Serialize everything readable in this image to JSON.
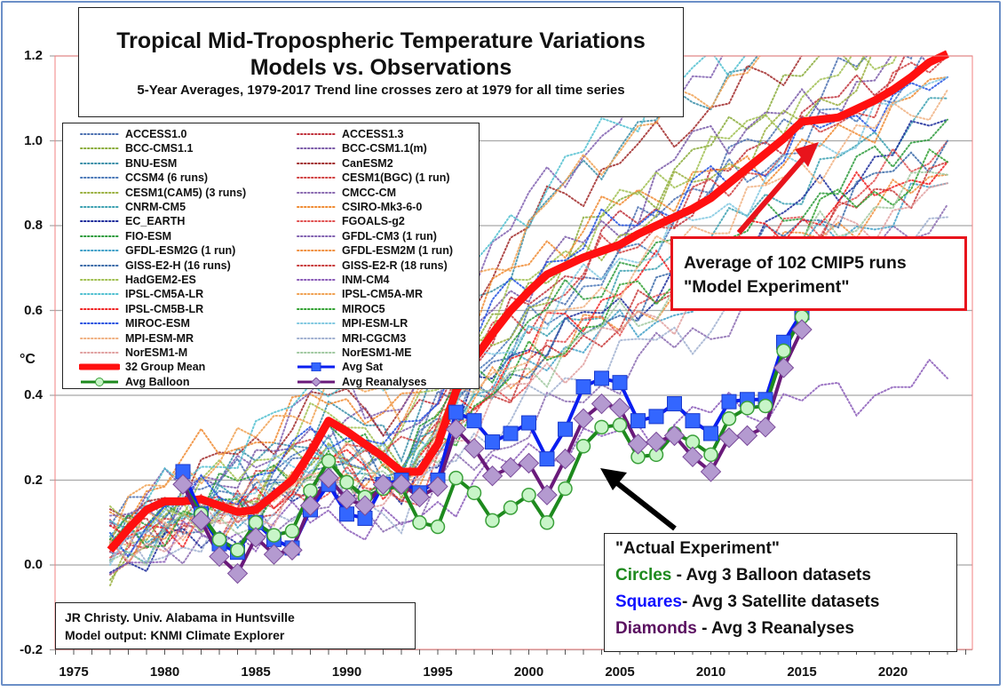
{
  "chart_data": {
    "type": "line",
    "title": "Tropical Mid-Tropospheric Temperature Variations",
    "subtitle": "Models vs. Observations",
    "subtitle2": "5-Year Averages, 1979-2017 Trend line crosses zero at 1979 for all time series",
    "xlabel": "",
    "ylabel": "°C",
    "xlim": [
      1975,
      2024.5
    ],
    "ylim": [
      -0.2,
      1.2
    ],
    "grid": "horizontal",
    "x_ticks": [
      "1975",
      "1980",
      "1985",
      "1990",
      "1995",
      "2000",
      "2005",
      "2010",
      "2015",
      "2020"
    ],
    "y_ticks": [
      "1.2",
      "1.0",
      "0.8",
      "0.6",
      "0.4",
      "0.2",
      "0.0",
      "-0.2"
    ],
    "legend_placement": "top-left",
    "observations_x": [
      1981,
      1982,
      1983,
      1984,
      1985,
      1986,
      1987,
      1988,
      1989,
      1990,
      1991,
      1992,
      1993,
      1994,
      1995,
      1996,
      1997,
      1998,
      1999,
      2000,
      2001,
      2002,
      2003,
      2004,
      2005,
      2006,
      2007,
      2008,
      2009,
      2010,
      2011,
      2012,
      2013,
      2014,
      2015
    ],
    "series": [
      {
        "name": "32 Group Mean",
        "style": "thick-line",
        "color": "#ff1010",
        "x": [
          1977,
          1978,
          1979,
          1980,
          1981,
          1982,
          1983,
          1984,
          1985,
          1986,
          1987,
          1988,
          1989,
          1990,
          1991,
          1992,
          1993,
          1994,
          1995,
          1996,
          1997,
          1998,
          1999,
          2000,
          2001,
          2002,
          2003,
          2004,
          2005,
          2006,
          2007,
          2008,
          2009,
          2010,
          2011,
          2012,
          2013,
          2014,
          2015,
          2016,
          2017,
          2018,
          2019,
          2020,
          2021,
          2022,
          2023
        ],
        "values": [
          0.035,
          0.085,
          0.13,
          0.15,
          0.15,
          0.155,
          0.14,
          0.125,
          0.13,
          0.165,
          0.2,
          0.265,
          0.34,
          0.315,
          0.285,
          0.255,
          0.22,
          0.22,
          0.285,
          0.41,
          0.485,
          0.545,
          0.6,
          0.645,
          0.685,
          0.705,
          0.725,
          0.74,
          0.755,
          0.78,
          0.8,
          0.82,
          0.84,
          0.865,
          0.9,
          0.935,
          0.97,
          1.005,
          1.045,
          1.05,
          1.055,
          1.075,
          1.095,
          1.12,
          1.15,
          1.185,
          1.205
        ]
      },
      {
        "name": "Avg Sat",
        "style": "squares",
        "color": "#0a1ef0",
        "marker_fill": "#3366ff",
        "values": [
          0.22,
          0.12,
          0.05,
          0.03,
          0.1,
          0.06,
          0.04,
          0.13,
          0.19,
          0.12,
          0.11,
          0.19,
          0.2,
          0.17,
          0.2,
          0.36,
          0.34,
          0.29,
          0.31,
          0.335,
          0.25,
          0.32,
          0.42,
          0.44,
          0.43,
          0.34,
          0.35,
          0.38,
          0.34,
          0.31,
          0.385,
          0.39,
          0.39,
          0.525,
          0.595
        ]
      },
      {
        "name": "Avg Balloon",
        "style": "circles",
        "color": "#1e8a1e",
        "marker_fill": "#c8f5c8",
        "values": [
          0.19,
          0.12,
          0.06,
          0.035,
          0.1,
          0.07,
          0.08,
          0.175,
          0.245,
          0.195,
          0.16,
          0.18,
          0.185,
          0.1,
          0.09,
          0.205,
          0.17,
          0.105,
          0.135,
          0.165,
          0.1,
          0.18,
          0.28,
          0.325,
          0.33,
          0.255,
          0.26,
          0.31,
          0.29,
          0.26,
          0.345,
          0.37,
          0.375,
          0.505,
          0.585
        ]
      },
      {
        "name": "Avg Reanalyses",
        "style": "diamonds",
        "color": "#6a1a7a",
        "marker_fill": "#b49ad0",
        "values": [
          0.19,
          0.105,
          0.02,
          -0.02,
          0.065,
          0.025,
          0.035,
          0.14,
          0.205,
          0.155,
          0.14,
          0.19,
          0.19,
          0.16,
          0.185,
          0.32,
          0.275,
          0.21,
          0.23,
          0.24,
          0.165,
          0.25,
          0.345,
          0.38,
          0.37,
          0.285,
          0.29,
          0.305,
          0.255,
          0.22,
          0.3,
          0.305,
          0.325,
          0.465,
          0.555
        ]
      }
    ],
    "model_runs_x": [
      1977,
      1981,
      1985,
      1989,
      1993,
      1997,
      2001,
      2005,
      2009,
      2013,
      2017,
      2021,
      2023
    ],
    "model_runs": [
      {
        "name": "ACCESS1.0",
        "color": "#4a6fb0",
        "values": [
          0.1,
          0.18,
          0.2,
          0.3,
          0.25,
          0.45,
          0.6,
          0.75,
          0.9,
          1.0,
          1.15,
          1.25,
          1.3
        ]
      },
      {
        "name": "ACCESS1.3",
        "color": "#c0303a",
        "values": [
          0.05,
          0.1,
          0.15,
          0.25,
          0.3,
          0.5,
          0.65,
          0.8,
          0.85,
          1.0,
          1.1,
          1.2,
          1.25
        ]
      },
      {
        "name": "BCC-CMS1.1",
        "color": "#8aac3a",
        "values": [
          0.0,
          0.12,
          0.18,
          0.28,
          0.22,
          0.5,
          0.7,
          0.85,
          0.95,
          1.1,
          1.2,
          1.3,
          1.3
        ]
      },
      {
        "name": "BCC-CSM1.1(m)",
        "color": "#7a5aa8",
        "values": [
          0.1,
          0.2,
          0.22,
          0.35,
          0.3,
          0.55,
          0.72,
          0.8,
          1.0,
          1.05,
          1.1,
          1.2,
          1.25
        ]
      },
      {
        "name": "BNU-ESM",
        "color": "#3a8ea8",
        "values": [
          0.05,
          0.15,
          0.25,
          0.35,
          0.3,
          0.6,
          0.85,
          1.0,
          1.1,
          1.2,
          1.3,
          1.35,
          1.4
        ]
      },
      {
        "name": "CanESM2",
        "color": "#a02828",
        "values": [
          0.08,
          0.2,
          0.28,
          0.4,
          0.35,
          0.65,
          0.85,
          0.95,
          1.05,
          1.15,
          1.25,
          1.35,
          1.4
        ]
      },
      {
        "name": "CCSM4 (6 runs)",
        "color": "#4a78b8",
        "values": [
          0.05,
          0.12,
          0.18,
          0.3,
          0.22,
          0.45,
          0.6,
          0.7,
          0.85,
          0.95,
          1.05,
          1.15,
          1.2
        ]
      },
      {
        "name": "CESM1(BGC) (1 run)",
        "color": "#d04040",
        "values": [
          0.05,
          0.1,
          0.2,
          0.3,
          0.25,
          0.5,
          0.62,
          0.75,
          0.85,
          0.95,
          1.05,
          1.15,
          1.2
        ]
      },
      {
        "name": "CESM1(CAM5) (3 runs)",
        "color": "#9ab040",
        "values": [
          0.0,
          0.12,
          0.15,
          0.28,
          0.2,
          0.48,
          0.65,
          0.78,
          0.9,
          1.0,
          1.12,
          1.22,
          1.28
        ]
      },
      {
        "name": "CMCC-CM",
        "color": "#8a6ab0",
        "values": [
          0.02,
          0.05,
          0.1,
          0.15,
          0.1,
          0.25,
          0.35,
          0.45,
          0.55,
          0.6,
          0.7,
          0.8,
          0.85
        ]
      },
      {
        "name": "CNRM-CM5",
        "color": "#3aa0b0",
        "values": [
          0.05,
          0.12,
          0.15,
          0.25,
          0.2,
          0.4,
          0.55,
          0.65,
          0.75,
          0.85,
          0.95,
          1.05,
          1.1
        ]
      },
      {
        "name": "CSIRO-Mk3-6-0",
        "color": "#f08a30",
        "values": [
          0.1,
          0.25,
          0.3,
          0.4,
          0.35,
          0.6,
          0.75,
          0.85,
          0.9,
          0.95,
          1.0,
          1.1,
          1.15
        ]
      },
      {
        "name": "EC_EARTH",
        "color": "#1a2a9a",
        "values": [
          0.0,
          0.05,
          0.1,
          0.2,
          0.15,
          0.4,
          0.55,
          0.6,
          0.7,
          0.8,
          0.9,
          1.0,
          1.05
        ]
      },
      {
        "name": "FGOALS-g2",
        "color": "#e05050",
        "values": [
          0.05,
          0.1,
          0.12,
          0.2,
          0.15,
          0.35,
          0.5,
          0.6,
          0.65,
          0.75,
          0.85,
          0.95,
          1.0
        ]
      },
      {
        "name": "FIO-ESM",
        "color": "#2a9a3a",
        "values": [
          0.05,
          0.15,
          0.2,
          0.3,
          0.25,
          0.45,
          0.6,
          0.7,
          0.75,
          0.8,
          0.9,
          1.0,
          1.05
        ]
      },
      {
        "name": "GFDL-CM3 (1 run)",
        "color": "#8060b0",
        "values": [
          0.1,
          0.15,
          0.25,
          0.45,
          0.35,
          0.7,
          0.9,
          1.05,
          1.15,
          1.25,
          1.35,
          1.4,
          1.45
        ]
      },
      {
        "name": "GFDL-ESM2G (1 run)",
        "color": "#40a0c8",
        "values": [
          0.02,
          0.1,
          0.15,
          0.25,
          0.2,
          0.4,
          0.5,
          0.55,
          0.62,
          0.7,
          0.78,
          0.85,
          0.9
        ]
      },
      {
        "name": "GFDL-ESM2M (1 run)",
        "color": "#f09040",
        "values": [
          0.02,
          0.08,
          0.12,
          0.22,
          0.18,
          0.38,
          0.5,
          0.58,
          0.65,
          0.72,
          0.8,
          0.88,
          0.92
        ]
      },
      {
        "name": "GISS-E2-H (16 runs)",
        "color": "#3a6aa8",
        "values": [
          0.05,
          0.1,
          0.15,
          0.25,
          0.2,
          0.4,
          0.5,
          0.6,
          0.68,
          0.75,
          0.85,
          0.95,
          1.0
        ]
      },
      {
        "name": "GISS-E2-R (18 runs)",
        "color": "#c83a3a",
        "values": [
          0.05,
          0.1,
          0.12,
          0.22,
          0.18,
          0.38,
          0.48,
          0.58,
          0.65,
          0.72,
          0.82,
          0.9,
          0.95
        ]
      },
      {
        "name": "HadGEM2-ES",
        "color": "#a0c050",
        "values": [
          0.08,
          0.15,
          0.25,
          0.35,
          0.3,
          0.55,
          0.7,
          0.85,
          0.95,
          1.05,
          1.15,
          1.25,
          1.3
        ]
      },
      {
        "name": "INM-CM4",
        "color": "#8a5ab8",
        "values": [
          0.0,
          0.05,
          0.08,
          0.12,
          0.08,
          0.2,
          0.28,
          0.3,
          0.35,
          0.38,
          0.4,
          0.42,
          0.44
        ]
      },
      {
        "name": "IPSL-CM5A-LR",
        "color": "#50c0d0",
        "values": [
          0.1,
          0.2,
          0.3,
          0.45,
          0.4,
          0.7,
          0.9,
          1.05,
          1.15,
          1.25,
          1.35,
          1.4,
          1.45
        ]
      },
      {
        "name": "IPSL-CM5A-MR",
        "color": "#f0a050",
        "values": [
          0.1,
          0.22,
          0.3,
          0.42,
          0.38,
          0.65,
          0.85,
          1.0,
          1.1,
          1.2,
          1.3,
          1.38,
          1.42
        ]
      },
      {
        "name": "IPSL-CM5B-LR",
        "color": "#f02020",
        "values": [
          0.05,
          0.1,
          0.15,
          0.25,
          0.2,
          0.4,
          0.55,
          0.65,
          0.72,
          0.78,
          0.85,
          0.92,
          0.95
        ]
      },
      {
        "name": "MIROC5",
        "color": "#30a030",
        "values": [
          0.05,
          0.1,
          0.15,
          0.22,
          0.18,
          0.38,
          0.5,
          0.62,
          0.68,
          0.75,
          0.85,
          0.9,
          0.95
        ]
      },
      {
        "name": "MIROC-ESM",
        "color": "#2050e0",
        "values": [
          0.05,
          0.15,
          0.2,
          0.32,
          0.28,
          0.55,
          0.72,
          0.8,
          0.88,
          0.95,
          1.05,
          1.1,
          1.15
        ]
      },
      {
        "name": "MPI-ESM-LR",
        "color": "#80c8e0",
        "values": [
          0.05,
          0.12,
          0.18,
          0.28,
          0.22,
          0.45,
          0.6,
          0.72,
          0.8,
          0.9,
          1.0,
          1.1,
          1.15
        ]
      },
      {
        "name": "MPI-ESM-MR",
        "color": "#f0b080",
        "values": [
          0.05,
          0.1,
          0.15,
          0.25,
          0.2,
          0.42,
          0.55,
          0.68,
          0.78,
          0.88,
          0.98,
          1.08,
          1.12
        ]
      },
      {
        "name": "MRI-CGCM3",
        "color": "#a0b0d0",
        "values": [
          0.0,
          0.05,
          0.1,
          0.18,
          0.12,
          0.3,
          0.4,
          0.5,
          0.55,
          0.62,
          0.7,
          0.78,
          0.82
        ]
      },
      {
        "name": "NorESM1-M",
        "color": "#e0a0a0",
        "values": [
          0.02,
          0.08,
          0.12,
          0.2,
          0.15,
          0.35,
          0.45,
          0.55,
          0.62,
          0.7,
          0.78,
          0.85,
          0.9
        ]
      },
      {
        "name": "NorESM1-ME",
        "color": "#a0c8a0",
        "values": [
          0.02,
          0.08,
          0.12,
          0.22,
          0.18,
          0.38,
          0.48,
          0.58,
          0.65,
          0.72,
          0.8,
          0.88,
          0.92
        ]
      }
    ],
    "annotations": [
      {
        "text_lines": [
          "Average of 102 CMIP5 runs",
          "\"Model Experiment\""
        ],
        "arrow_color": "#e8141c",
        "points_to": "32 Group Mean"
      },
      {
        "text_lines": [
          "\"Actual Experiment\""
        ],
        "arrow_color": "#000000",
        "points_to": "observations"
      }
    ]
  },
  "title": {
    "line1": "Tropical Mid-Tropospheric Temperature Variations",
    "line2": "Models vs. Observations",
    "line3": "5-Year Averages, 1979-2017 Trend line crosses zero at 1979 for all time series"
  },
  "legend": {
    "left": [
      "ACCESS1.0",
      "BCC-CMS1.1",
      "BNU-ESM",
      "CCSM4 (6 runs)",
      "CESM1(CAM5) (3 runs)",
      "CNRM-CM5",
      "EC_EARTH",
      "FIO-ESM",
      "GFDL-ESM2G (1 run)",
      "GISS-E2-H (16 runs)",
      "HadGEM2-ES",
      "IPSL-CM5A-LR",
      "IPSL-CM5B-LR",
      "MIROC-ESM",
      "MPI-ESM-MR",
      "NorESM1-M",
      "32 Group Mean",
      "Avg Balloon"
    ],
    "right": [
      "ACCESS1.3",
      "BCC-CSM1.1(m)",
      "CanESM2",
      "CESM1(BGC) (1 run)",
      "CMCC-CM",
      "CSIRO-Mk3-6-0",
      "FGOALS-g2",
      "GFDL-CM3 (1 run)",
      "GFDL-ESM2M (1 run)",
      "GISS-E2-R (18 runs)",
      "INM-CM4",
      "IPSL-CM5A-MR",
      "MIROC5",
      "MPI-ESM-LR",
      "MRI-CGCM3",
      "NorESM1-ME",
      "Avg Sat",
      "Avg Reanalyses"
    ]
  },
  "model_box": {
    "line1": "Average of 102 CMIP5 runs",
    "line2": "\"Model Experiment\""
  },
  "actual_box": {
    "line1": "\"Actual Experiment\"",
    "circles_word": "Circles",
    "circles_rest": " - Avg 3 Balloon datasets",
    "squares_word": "Squares",
    "squares_rest": "- Avg 3 Satellite datasets",
    "diamonds_word": "Diamonds",
    "diamonds_rest": " - Avg 3 Reanalyses",
    "colors": {
      "circles": "#1e8a1e",
      "squares": "#1010ff",
      "diamonds": "#5a1060"
    }
  },
  "credit_box": {
    "line1": "JR Christy. Univ. Alabama in Huntsville",
    "line2": "Model output: KNMI Climate Explorer"
  },
  "axis": {
    "ylabel": "°C"
  }
}
